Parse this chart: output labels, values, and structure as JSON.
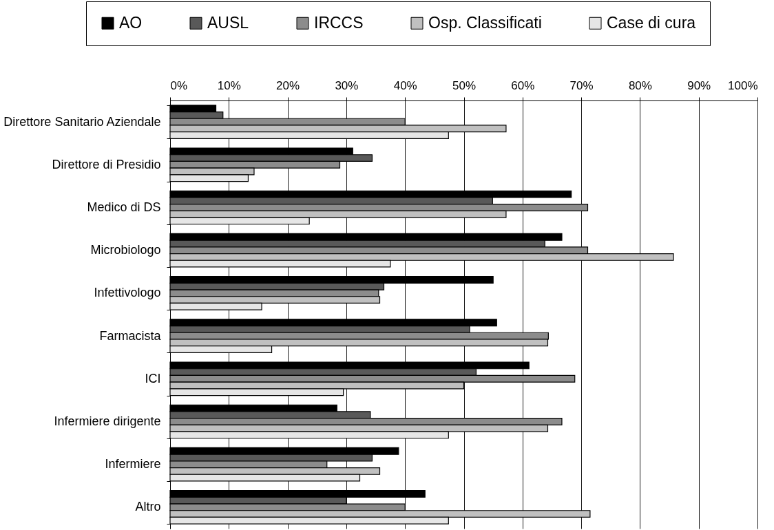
{
  "chart_data": {
    "type": "bar",
    "orientation": "horizontal",
    "categories": [
      "Direttore Sanitario Aziendale",
      "Direttore di Presidio",
      "Medico di DS",
      "Microbiologo",
      "Infettivologo",
      "Farmacista",
      "ICI",
      "Infermiere dirigente",
      "Infermiere",
      "Altro"
    ],
    "series": [
      {
        "name": "AO",
        "color": "#000000",
        "values": [
          7.8,
          31.1,
          68.3,
          66.7,
          55.0,
          55.6,
          61.1,
          28.4,
          38.9,
          43.4
        ]
      },
      {
        "name": "AUSL",
        "color": "#595959",
        "values": [
          9.0,
          34.4,
          54.9,
          63.8,
          36.4,
          51.0,
          52.1,
          34.1,
          34.4,
          30.0
        ]
      },
      {
        "name": "IRCCS",
        "color": "#8c8c8c",
        "values": [
          40.0,
          28.9,
          71.1,
          71.1,
          35.5,
          64.4,
          68.9,
          66.7,
          26.7,
          40.0
        ]
      },
      {
        "name": "Osp. Classificati",
        "color": "#c0c0c0",
        "values": [
          57.2,
          14.3,
          57.2,
          85.7,
          35.7,
          64.3,
          50.0,
          64.3,
          35.7,
          71.5
        ]
      },
      {
        "name": "Case di cura",
        "color": "#e6e6e6",
        "values": [
          47.4,
          13.3,
          23.7,
          37.5,
          15.6,
          17.3,
          29.5,
          47.4,
          32.3,
          47.4
        ]
      }
    ],
    "xlim": [
      0,
      100
    ],
    "xticks": [
      {
        "value": 0,
        "label": "0%"
      },
      {
        "value": 10,
        "label": "10%"
      },
      {
        "value": 20,
        "label": "20%"
      },
      {
        "value": 30,
        "label": "30%"
      },
      {
        "value": 40,
        "label": "40%"
      },
      {
        "value": 50,
        "label": "50%"
      },
      {
        "value": 60,
        "label": "60%"
      },
      {
        "value": 70,
        "label": "70%"
      },
      {
        "value": 80,
        "label": "80%"
      },
      {
        "value": 90,
        "label": "90%"
      },
      {
        "value": 100,
        "label": "100%"
      }
    ],
    "grid": "x",
    "legend": "top"
  }
}
